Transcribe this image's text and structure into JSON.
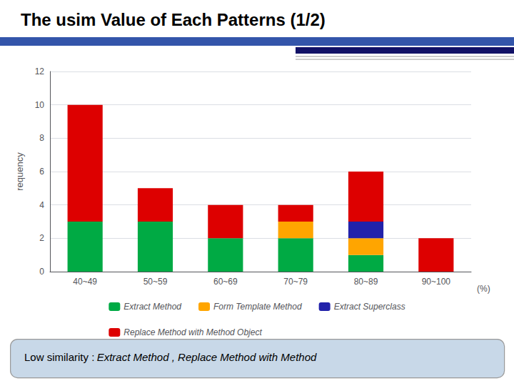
{
  "chart_data": {
    "type": "bar",
    "title": "The usim Value of Each Patterns (1/2)",
    "ylabel": "requency",
    "xlabel": "(%)",
    "categories": [
      "40~49",
      "50~59",
      "60~69",
      "70~79",
      "80~89",
      "90~100"
    ],
    "series": [
      {
        "name": "Extract Method",
        "color": "#00AA44",
        "values": [
          3,
          3,
          2,
          2,
          1,
          0
        ]
      },
      {
        "name": "Form Template Method",
        "color": "#FFA500",
        "values": [
          0,
          0,
          0,
          1,
          1,
          0
        ]
      },
      {
        "name": "Extract Superclass",
        "color": "#2222AA",
        "values": [
          0,
          0,
          0,
          0,
          1,
          0
        ]
      },
      {
        "name": "Replace Method with Method Object",
        "color": "#DD0000",
        "values": [
          7,
          2,
          2,
          1,
          3,
          2
        ]
      }
    ],
    "stacked": true,
    "ylim": [
      0,
      12
    ],
    "yticks": [
      0,
      2,
      4,
      6,
      8,
      10,
      12
    ],
    "grid": true,
    "legend": "bottom",
    "annotations": [
      "Low similarity :",
      "Extract Method , Replace Method with Method"
    ]
  }
}
